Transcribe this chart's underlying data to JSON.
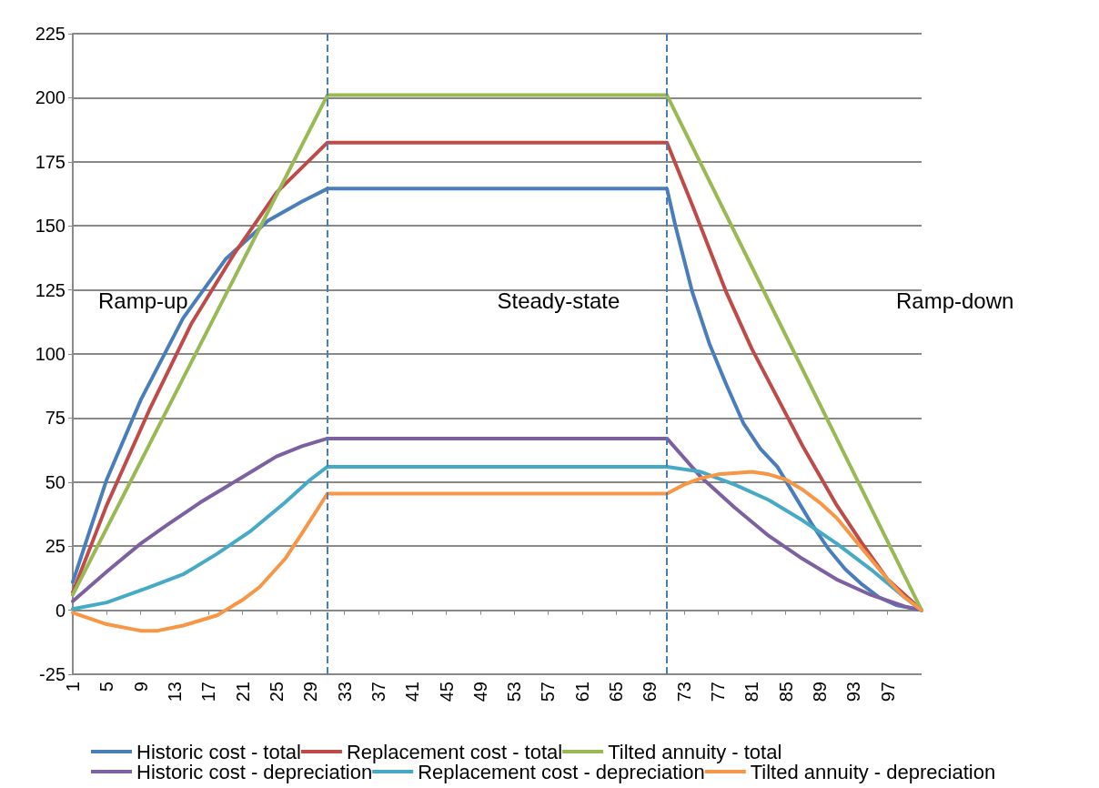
{
  "chart_data": {
    "type": "line",
    "xlim": [
      1,
      101
    ],
    "xticks": [
      1,
      5,
      9,
      13,
      17,
      21,
      25,
      29,
      33,
      37,
      41,
      45,
      49,
      53,
      57,
      61,
      65,
      69,
      73,
      77,
      81,
      85,
      89,
      93,
      97
    ],
    "ylim": [
      -25,
      225
    ],
    "yticks": [
      -25,
      0,
      25,
      50,
      75,
      100,
      125,
      150,
      175,
      200,
      225
    ],
    "grid": "y",
    "legend": "bottom",
    "marker": "none",
    "line_style": "solid",
    "annotations": [
      "Ramp-up",
      "Steady-state",
      "Ramp-down"
    ],
    "ref_lines": [
      {
        "axis": "x",
        "value": 31,
        "label": null,
        "color": "#4a7ebb",
        "line_style": "dashed"
      },
      {
        "axis": "x",
        "value": 71,
        "label": null,
        "color": "#4a7ebb",
        "line_style": "dashed"
      }
    ],
    "series": [
      {
        "name": "Historic cost - total",
        "color": "#4a7ebb",
        "x": [
          1,
          5,
          9,
          14,
          19,
          24,
          28,
          31,
          71,
          72,
          74,
          76,
          78,
          80,
          82,
          84,
          86,
          88,
          90,
          92,
          94,
          96,
          98,
          101
        ],
        "values": [
          11,
          51,
          82,
          114,
          137,
          152,
          159.5,
          164.5,
          164.5,
          150,
          124,
          104,
          88,
          73,
          63,
          56,
          45,
          34,
          24,
          16,
          10,
          5,
          2,
          0
        ]
      },
      {
        "name": "Replacement cost - total",
        "color": "#be4b48",
        "x": [
          1,
          5,
          10,
          15,
          20,
          25,
          31,
          71,
          74,
          78,
          81,
          84,
          87,
          91,
          94,
          97,
          101
        ],
        "values": [
          7,
          41,
          78,
          112,
          139,
          163,
          182.5,
          182.5,
          158,
          124,
          102,
          83,
          64,
          41,
          26,
          12,
          0
        ]
      },
      {
        "name": "Tilted annuity - total",
        "color": "#98b954",
        "x": [
          1,
          11,
          21,
          31,
          71,
          81,
          91,
          101
        ],
        "values": [
          6,
          71,
          136,
          201,
          201,
          134,
          67,
          0
        ]
      },
      {
        "name": "Historic cost - depreciation",
        "color": "#7d60a0",
        "x": [
          1,
          5,
          9,
          12,
          16,
          21,
          25,
          28,
          31,
          71,
          75,
          79,
          83,
          87,
          91,
          95,
          99,
          101
        ],
        "values": [
          3.5,
          15,
          26,
          33,
          42,
          52,
          60,
          64,
          67,
          67,
          52,
          40,
          29,
          20,
          12,
          6,
          1.5,
          0
        ]
      },
      {
        "name": "Replacement cost - depreciation",
        "color": "#46aac5",
        "x": [
          1,
          5,
          10,
          14,
          18,
          22,
          26,
          29,
          31,
          71,
          75,
          79,
          83,
          87,
          91,
          95,
          99,
          101
        ],
        "values": [
          0.5,
          3,
          9,
          14,
          22,
          31,
          42,
          51,
          56,
          56,
          54,
          49,
          43,
          35,
          26,
          16,
          5,
          0
        ]
      },
      {
        "name": "Tilted annuity - depreciation",
        "color": "#f79646",
        "x": [
          1,
          5,
          9,
          11,
          14,
          18,
          21,
          23,
          26,
          28,
          31,
          71,
          73,
          75,
          77,
          81,
          83,
          85,
          87,
          89,
          91,
          93,
          95,
          97,
          99,
          101
        ],
        "values": [
          -1,
          -5.5,
          -8,
          -8,
          -6,
          -2,
          4,
          9,
          20,
          30,
          45.5,
          45.5,
          49,
          51.5,
          53,
          54,
          53,
          51,
          47,
          42,
          36,
          28,
          20,
          12,
          5,
          0
        ]
      }
    ]
  }
}
